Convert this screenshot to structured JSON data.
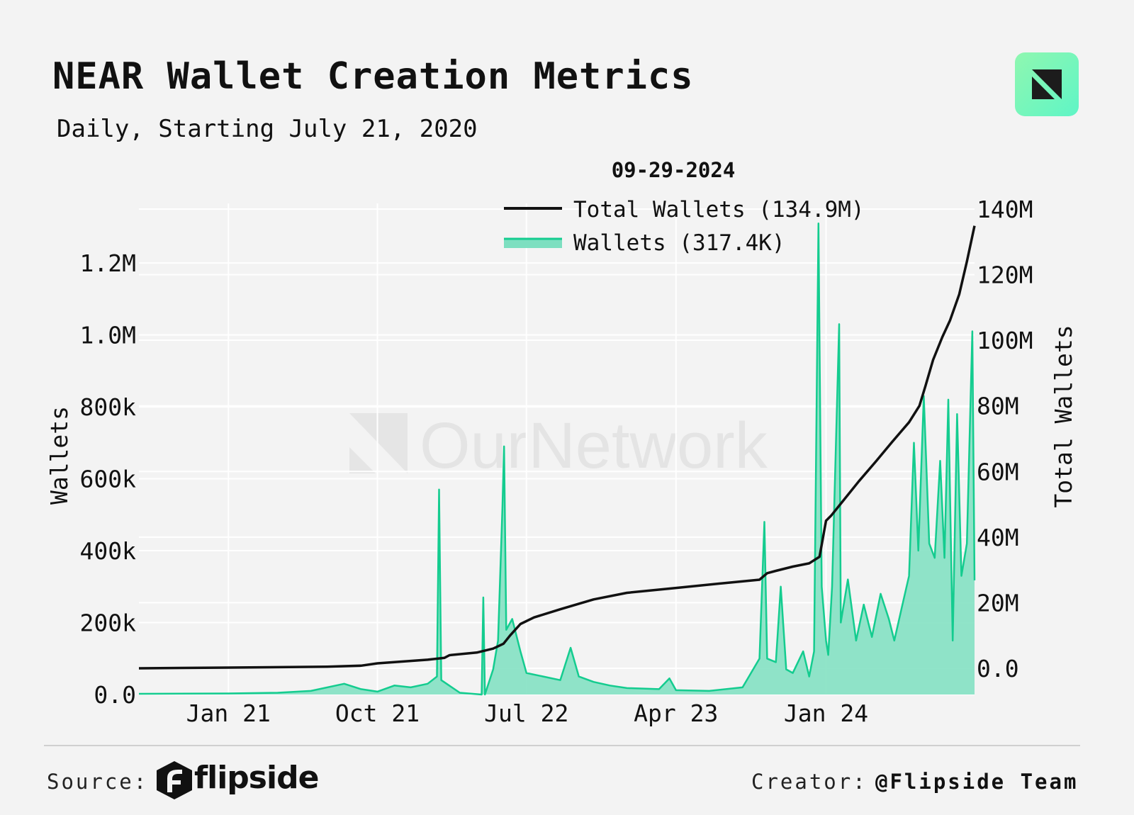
{
  "header": {
    "title": "NEAR Wallet Creation Metrics",
    "subtitle": "Daily, Starting July 21, 2020",
    "logo_icon": "ournetwork-logo-icon"
  },
  "footer": {
    "source_label": "Source:",
    "source_brand": "flipside",
    "source_brand_icon": "flipside-logo-icon",
    "creator_label": "Creator:",
    "creator_name": "@Flipside Team"
  },
  "watermark": {
    "text": "OurNetwork"
  },
  "chart_data": {
    "type": "area",
    "legend": {
      "date": "09-29-2024",
      "total_label": "Total Wallets (134.9M)",
      "daily_label": "Wallets (317.4K)",
      "placement": "top-center"
    },
    "colors": {
      "total": "#111111",
      "daily_line": "#14cc8f",
      "daily_fill": "#7ddfc0"
    },
    "x_axis": {
      "type": "date",
      "range": [
        "2020-07-21",
        "2024-09-29"
      ],
      "ticks": [
        {
          "date": "2021-01-01",
          "label": "Jan 21"
        },
        {
          "date": "2021-10-01",
          "label": "Oct 21"
        },
        {
          "date": "2022-07-01",
          "label": "Jul 22"
        },
        {
          "date": "2023-04-01",
          "label": "Apr 23"
        },
        {
          "date": "2024-01-01",
          "label": "Jan 24"
        }
      ]
    },
    "y_left": {
      "label": "Wallets",
      "range": [
        0,
        1350000
      ],
      "ticks": [
        {
          "value": 0,
          "label": "0.0"
        },
        {
          "value": 200000,
          "label": "200k"
        },
        {
          "value": 400000,
          "label": "400k"
        },
        {
          "value": 600000,
          "label": "600k"
        },
        {
          "value": 800000,
          "label": "800k"
        },
        {
          "value": 1000000,
          "label": "1.0M"
        },
        {
          "value": 1200000,
          "label": "1.2M"
        }
      ]
    },
    "y_right": {
      "label": "Total Wallets",
      "range": [
        -8000000,
        140000000
      ],
      "ticks": [
        {
          "value": 0,
          "label": "0.0"
        },
        {
          "value": 20000000,
          "label": "20M"
        },
        {
          "value": 40000000,
          "label": "40M"
        },
        {
          "value": 60000000,
          "label": "60M"
        },
        {
          "value": 80000000,
          "label": "80M"
        },
        {
          "value": 100000000,
          "label": "100M"
        },
        {
          "value": 120000000,
          "label": "120M"
        },
        {
          "value": 140000000,
          "label": "140M"
        }
      ]
    },
    "grid": true,
    "series": [
      {
        "name": "Total Wallets",
        "axis": "right",
        "points": [
          [
            "2020-07-21",
            0
          ],
          [
            "2021-01-01",
            200000
          ],
          [
            "2021-07-01",
            500000
          ],
          [
            "2021-09-01",
            800000
          ],
          [
            "2021-10-01",
            1500000
          ],
          [
            "2022-01-01",
            2600000
          ],
          [
            "2022-02-01",
            3200000
          ],
          [
            "2022-02-10",
            4000000
          ],
          [
            "2022-04-01",
            4800000
          ],
          [
            "2022-05-01",
            6000000
          ],
          [
            "2022-05-20",
            7500000
          ],
          [
            "2022-06-01",
            10000000
          ],
          [
            "2022-06-20",
            13500000
          ],
          [
            "2022-07-15",
            15500000
          ],
          [
            "2022-09-01",
            18000000
          ],
          [
            "2022-11-01",
            21000000
          ],
          [
            "2023-01-01",
            23000000
          ],
          [
            "2023-04-01",
            24500000
          ],
          [
            "2023-07-01",
            26000000
          ],
          [
            "2023-09-01",
            27000000
          ],
          [
            "2023-09-15",
            29000000
          ],
          [
            "2023-10-01",
            29700000
          ],
          [
            "2023-11-01",
            31000000
          ],
          [
            "2023-12-01",
            32000000
          ],
          [
            "2023-12-20",
            34000000
          ],
          [
            "2024-01-01",
            45000000
          ],
          [
            "2024-01-10",
            46500000
          ],
          [
            "2024-02-01",
            51000000
          ],
          [
            "2024-03-01",
            57000000
          ],
          [
            "2024-04-01",
            63000000
          ],
          [
            "2024-05-01",
            69000000
          ],
          [
            "2024-06-01",
            75000000
          ],
          [
            "2024-06-20",
            80000000
          ],
          [
            "2024-07-01",
            86000000
          ],
          [
            "2024-07-15",
            94000000
          ],
          [
            "2024-08-01",
            101000000
          ],
          [
            "2024-08-15",
            106000000
          ],
          [
            "2024-09-01",
            114000000
          ],
          [
            "2024-09-15",
            124000000
          ],
          [
            "2024-09-29",
            134900000
          ]
        ]
      },
      {
        "name": "Wallets",
        "axis": "left",
        "points": [
          [
            "2020-07-21",
            2000
          ],
          [
            "2021-01-01",
            3000
          ],
          [
            "2021-04-01",
            5000
          ],
          [
            "2021-06-01",
            10000
          ],
          [
            "2021-08-01",
            30000
          ],
          [
            "2021-09-01",
            15000
          ],
          [
            "2021-10-01",
            8000
          ],
          [
            "2021-11-01",
            25000
          ],
          [
            "2021-12-01",
            20000
          ],
          [
            "2022-01-01",
            30000
          ],
          [
            "2022-01-18",
            50000
          ],
          [
            "2022-01-22",
            570000
          ],
          [
            "2022-01-26",
            40000
          ],
          [
            "2022-03-01",
            5000
          ],
          [
            "2022-04-10",
            0
          ],
          [
            "2022-04-13",
            270000
          ],
          [
            "2022-04-16",
            0
          ],
          [
            "2022-05-01",
            70000
          ],
          [
            "2022-05-10",
            150000
          ],
          [
            "2022-05-18",
            520000
          ],
          [
            "2022-05-21",
            690000
          ],
          [
            "2022-05-25",
            180000
          ],
          [
            "2022-06-05",
            210000
          ],
          [
            "2022-06-20",
            120000
          ],
          [
            "2022-07-01",
            60000
          ],
          [
            "2022-08-01",
            50000
          ],
          [
            "2022-09-01",
            40000
          ],
          [
            "2022-09-20",
            130000
          ],
          [
            "2022-10-05",
            50000
          ],
          [
            "2022-11-01",
            35000
          ],
          [
            "2022-12-01",
            25000
          ],
          [
            "2023-01-01",
            18000
          ],
          [
            "2023-03-01",
            15000
          ],
          [
            "2023-03-20",
            45000
          ],
          [
            "2023-04-01",
            12000
          ],
          [
            "2023-06-01",
            10000
          ],
          [
            "2023-08-01",
            20000
          ],
          [
            "2023-09-01",
            100000
          ],
          [
            "2023-09-10",
            480000
          ],
          [
            "2023-09-15",
            100000
          ],
          [
            "2023-10-01",
            90000
          ],
          [
            "2023-10-10",
            300000
          ],
          [
            "2023-10-20",
            70000
          ],
          [
            "2023-11-01",
            60000
          ],
          [
            "2023-11-20",
            120000
          ],
          [
            "2023-12-01",
            50000
          ],
          [
            "2023-12-10",
            120000
          ],
          [
            "2023-12-18",
            1310000
          ],
          [
            "2023-12-24",
            300000
          ],
          [
            "2024-01-01",
            150000
          ],
          [
            "2024-01-05",
            110000
          ],
          [
            "2024-01-12",
            300000
          ],
          [
            "2024-01-25",
            1030000
          ],
          [
            "2024-01-28",
            200000
          ],
          [
            "2024-02-10",
            320000
          ],
          [
            "2024-02-25",
            150000
          ],
          [
            "2024-03-10",
            250000
          ],
          [
            "2024-03-25",
            160000
          ],
          [
            "2024-04-10",
            280000
          ],
          [
            "2024-04-25",
            210000
          ],
          [
            "2024-05-05",
            150000
          ],
          [
            "2024-05-20",
            250000
          ],
          [
            "2024-06-01",
            330000
          ],
          [
            "2024-06-10",
            700000
          ],
          [
            "2024-06-18",
            400000
          ],
          [
            "2024-06-28",
            830000
          ],
          [
            "2024-07-08",
            420000
          ],
          [
            "2024-07-18",
            380000
          ],
          [
            "2024-07-28",
            650000
          ],
          [
            "2024-08-05",
            380000
          ],
          [
            "2024-08-12",
            820000
          ],
          [
            "2024-08-20",
            150000
          ],
          [
            "2024-08-28",
            780000
          ],
          [
            "2024-09-05",
            330000
          ],
          [
            "2024-09-15",
            420000
          ],
          [
            "2024-09-25",
            1010000
          ],
          [
            "2024-09-29",
            317400
          ]
        ]
      }
    ]
  }
}
